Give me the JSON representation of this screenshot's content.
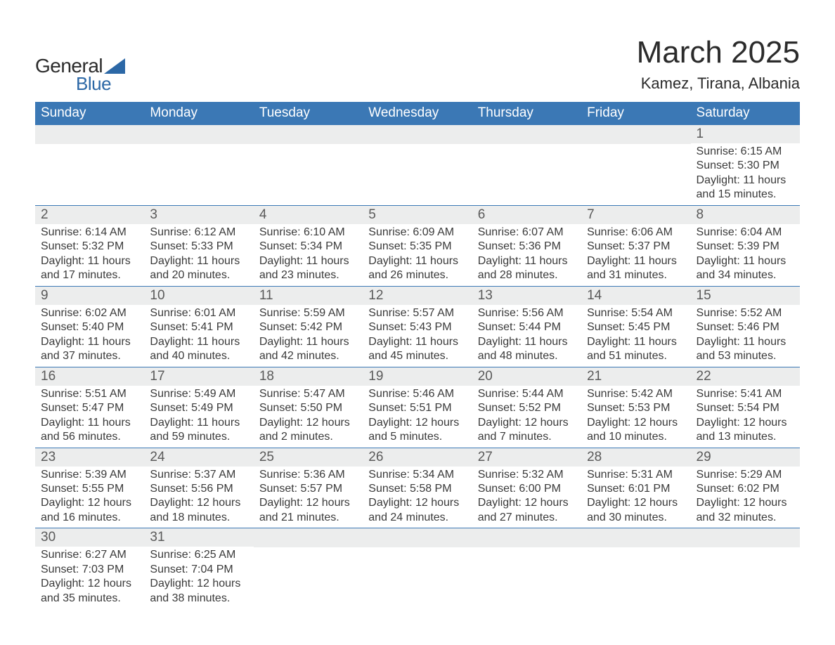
{
  "logo": {
    "word1": "General",
    "word2": "Blue",
    "triangle_color": "#2c68a6",
    "text_dark": "#2b2b2b"
  },
  "title": "March 2025",
  "location": "Kamez, Tirana, Albania",
  "colors": {
    "header_bg": "#3b78b5",
    "header_text": "#ffffff",
    "daynum_bg": "#eceded",
    "daynum_text": "#5a5a5a",
    "body_text": "#3a3a3a",
    "row_border": "#3b78b5",
    "page_bg": "#ffffff"
  },
  "typography": {
    "title_fontsize": 44,
    "location_fontsize": 22,
    "dow_fontsize": 19,
    "daynum_fontsize": 19,
    "body_fontsize": 16
  },
  "days_of_week": [
    "Sunday",
    "Monday",
    "Tuesday",
    "Wednesday",
    "Thursday",
    "Friday",
    "Saturday"
  ],
  "label_sunrise": "Sunrise:",
  "label_sunset": "Sunset:",
  "label_daylight": "Daylight:",
  "weeks": [
    [
      {
        "day": "",
        "sunrise": "",
        "sunset": "",
        "daylight1": "",
        "daylight2": ""
      },
      {
        "day": "",
        "sunrise": "",
        "sunset": "",
        "daylight1": "",
        "daylight2": ""
      },
      {
        "day": "",
        "sunrise": "",
        "sunset": "",
        "daylight1": "",
        "daylight2": ""
      },
      {
        "day": "",
        "sunrise": "",
        "sunset": "",
        "daylight1": "",
        "daylight2": ""
      },
      {
        "day": "",
        "sunrise": "",
        "sunset": "",
        "daylight1": "",
        "daylight2": ""
      },
      {
        "day": "",
        "sunrise": "",
        "sunset": "",
        "daylight1": "",
        "daylight2": ""
      },
      {
        "day": "1",
        "sunrise": "6:15 AM",
        "sunset": "5:30 PM",
        "daylight1": "11 hours",
        "daylight2": "and 15 minutes."
      }
    ],
    [
      {
        "day": "2",
        "sunrise": "6:14 AM",
        "sunset": "5:32 PM",
        "daylight1": "11 hours",
        "daylight2": "and 17 minutes."
      },
      {
        "day": "3",
        "sunrise": "6:12 AM",
        "sunset": "5:33 PM",
        "daylight1": "11 hours",
        "daylight2": "and 20 minutes."
      },
      {
        "day": "4",
        "sunrise": "6:10 AM",
        "sunset": "5:34 PM",
        "daylight1": "11 hours",
        "daylight2": "and 23 minutes."
      },
      {
        "day": "5",
        "sunrise": "6:09 AM",
        "sunset": "5:35 PM",
        "daylight1": "11 hours",
        "daylight2": "and 26 minutes."
      },
      {
        "day": "6",
        "sunrise": "6:07 AM",
        "sunset": "5:36 PM",
        "daylight1": "11 hours",
        "daylight2": "and 28 minutes."
      },
      {
        "day": "7",
        "sunrise": "6:06 AM",
        "sunset": "5:37 PM",
        "daylight1": "11 hours",
        "daylight2": "and 31 minutes."
      },
      {
        "day": "8",
        "sunrise": "6:04 AM",
        "sunset": "5:39 PM",
        "daylight1": "11 hours",
        "daylight2": "and 34 minutes."
      }
    ],
    [
      {
        "day": "9",
        "sunrise": "6:02 AM",
        "sunset": "5:40 PM",
        "daylight1": "11 hours",
        "daylight2": "and 37 minutes."
      },
      {
        "day": "10",
        "sunrise": "6:01 AM",
        "sunset": "5:41 PM",
        "daylight1": "11 hours",
        "daylight2": "and 40 minutes."
      },
      {
        "day": "11",
        "sunrise": "5:59 AM",
        "sunset": "5:42 PM",
        "daylight1": "11 hours",
        "daylight2": "and 42 minutes."
      },
      {
        "day": "12",
        "sunrise": "5:57 AM",
        "sunset": "5:43 PM",
        "daylight1": "11 hours",
        "daylight2": "and 45 minutes."
      },
      {
        "day": "13",
        "sunrise": "5:56 AM",
        "sunset": "5:44 PM",
        "daylight1": "11 hours",
        "daylight2": "and 48 minutes."
      },
      {
        "day": "14",
        "sunrise": "5:54 AM",
        "sunset": "5:45 PM",
        "daylight1": "11 hours",
        "daylight2": "and 51 minutes."
      },
      {
        "day": "15",
        "sunrise": "5:52 AM",
        "sunset": "5:46 PM",
        "daylight1": "11 hours",
        "daylight2": "and 53 minutes."
      }
    ],
    [
      {
        "day": "16",
        "sunrise": "5:51 AM",
        "sunset": "5:47 PM",
        "daylight1": "11 hours",
        "daylight2": "and 56 minutes."
      },
      {
        "day": "17",
        "sunrise": "5:49 AM",
        "sunset": "5:49 PM",
        "daylight1": "11 hours",
        "daylight2": "and 59 minutes."
      },
      {
        "day": "18",
        "sunrise": "5:47 AM",
        "sunset": "5:50 PM",
        "daylight1": "12 hours",
        "daylight2": "and 2 minutes."
      },
      {
        "day": "19",
        "sunrise": "5:46 AM",
        "sunset": "5:51 PM",
        "daylight1": "12 hours",
        "daylight2": "and 5 minutes."
      },
      {
        "day": "20",
        "sunrise": "5:44 AM",
        "sunset": "5:52 PM",
        "daylight1": "12 hours",
        "daylight2": "and 7 minutes."
      },
      {
        "day": "21",
        "sunrise": "5:42 AM",
        "sunset": "5:53 PM",
        "daylight1": "12 hours",
        "daylight2": "and 10 minutes."
      },
      {
        "day": "22",
        "sunrise": "5:41 AM",
        "sunset": "5:54 PM",
        "daylight1": "12 hours",
        "daylight2": "and 13 minutes."
      }
    ],
    [
      {
        "day": "23",
        "sunrise": "5:39 AM",
        "sunset": "5:55 PM",
        "daylight1": "12 hours",
        "daylight2": "and 16 minutes."
      },
      {
        "day": "24",
        "sunrise": "5:37 AM",
        "sunset": "5:56 PM",
        "daylight1": "12 hours",
        "daylight2": "and 18 minutes."
      },
      {
        "day": "25",
        "sunrise": "5:36 AM",
        "sunset": "5:57 PM",
        "daylight1": "12 hours",
        "daylight2": "and 21 minutes."
      },
      {
        "day": "26",
        "sunrise": "5:34 AM",
        "sunset": "5:58 PM",
        "daylight1": "12 hours",
        "daylight2": "and 24 minutes."
      },
      {
        "day": "27",
        "sunrise": "5:32 AM",
        "sunset": "6:00 PM",
        "daylight1": "12 hours",
        "daylight2": "and 27 minutes."
      },
      {
        "day": "28",
        "sunrise": "5:31 AM",
        "sunset": "6:01 PM",
        "daylight1": "12 hours",
        "daylight2": "and 30 minutes."
      },
      {
        "day": "29",
        "sunrise": "5:29 AM",
        "sunset": "6:02 PM",
        "daylight1": "12 hours",
        "daylight2": "and 32 minutes."
      }
    ],
    [
      {
        "day": "30",
        "sunrise": "6:27 AM",
        "sunset": "7:03 PM",
        "daylight1": "12 hours",
        "daylight2": "and 35 minutes."
      },
      {
        "day": "31",
        "sunrise": "6:25 AM",
        "sunset": "7:04 PM",
        "daylight1": "12 hours",
        "daylight2": "and 38 minutes."
      },
      {
        "day": "",
        "sunrise": "",
        "sunset": "",
        "daylight1": "",
        "daylight2": ""
      },
      {
        "day": "",
        "sunrise": "",
        "sunset": "",
        "daylight1": "",
        "daylight2": ""
      },
      {
        "day": "",
        "sunrise": "",
        "sunset": "",
        "daylight1": "",
        "daylight2": ""
      },
      {
        "day": "",
        "sunrise": "",
        "sunset": "",
        "daylight1": "",
        "daylight2": ""
      },
      {
        "day": "",
        "sunrise": "",
        "sunset": "",
        "daylight1": "",
        "daylight2": ""
      }
    ]
  ]
}
